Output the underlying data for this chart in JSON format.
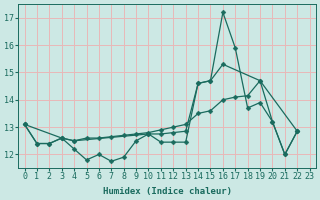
{
  "xlabel": "Humidex (Indice chaleur)",
  "background_color": "#cce8e4",
  "grid_color": "#e8b8b8",
  "line_color": "#1a6b5e",
  "ylim": [
    11.5,
    17.5
  ],
  "xlim": [
    -0.5,
    23.5
  ],
  "yticks": [
    12,
    13,
    14,
    15,
    16,
    17
  ],
  "xticks": [
    0,
    1,
    2,
    3,
    4,
    5,
    6,
    7,
    8,
    9,
    10,
    11,
    12,
    13,
    14,
    15,
    16,
    17,
    18,
    19,
    20,
    21,
    22,
    23
  ],
  "line1_x": [
    0,
    1,
    2,
    3,
    4,
    5,
    6,
    7,
    8,
    9,
    10,
    11,
    12,
    13,
    14,
    15,
    16,
    17,
    18,
    19,
    20,
    21,
    22
  ],
  "line1_y": [
    13.1,
    12.4,
    12.4,
    12.6,
    12.2,
    11.8,
    12.0,
    11.75,
    11.9,
    12.5,
    12.75,
    12.45,
    12.45,
    12.45,
    14.6,
    14.7,
    17.2,
    15.9,
    13.7,
    13.9,
    13.2,
    12.0,
    12.85
  ],
  "line2_x": [
    0,
    1,
    2,
    3,
    4,
    10,
    11,
    12,
    13,
    14,
    15,
    16,
    19,
    20,
    21,
    22
  ],
  "line2_y": [
    13.1,
    12.4,
    12.4,
    12.6,
    12.5,
    12.75,
    12.75,
    12.8,
    12.85,
    14.6,
    14.7,
    15.3,
    14.7,
    13.2,
    12.0,
    12.85
  ],
  "line3_x": [
    0,
    3,
    4,
    5,
    6,
    7,
    8,
    9,
    10,
    11,
    12,
    13,
    14,
    15,
    16,
    17,
    18,
    19,
    22
  ],
  "line3_y": [
    13.1,
    12.6,
    12.5,
    12.6,
    12.6,
    12.65,
    12.7,
    12.75,
    12.8,
    12.9,
    13.0,
    13.1,
    13.5,
    13.6,
    14.0,
    14.1,
    14.15,
    14.7,
    12.85
  ]
}
